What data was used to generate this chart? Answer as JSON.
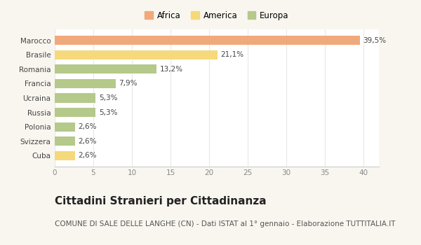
{
  "categories": [
    "Cuba",
    "Svizzera",
    "Polonia",
    "Russia",
    "Ucraina",
    "Francia",
    "Romania",
    "Brasile",
    "Marocco"
  ],
  "values": [
    2.6,
    2.6,
    2.6,
    5.3,
    5.3,
    7.9,
    13.2,
    21.1,
    39.5
  ],
  "labels": [
    "2,6%",
    "2,6%",
    "2,6%",
    "5,3%",
    "5,3%",
    "7,9%",
    "13,2%",
    "21,1%",
    "39,5%"
  ],
  "colors": [
    "#f5d97a",
    "#b5c98a",
    "#b5c98a",
    "#b5c98a",
    "#b5c98a",
    "#b5c98a",
    "#b5c98a",
    "#f5d97a",
    "#f0a97a"
  ],
  "legend_items": [
    {
      "label": "Africa",
      "color": "#f0a97a"
    },
    {
      "label": "America",
      "color": "#f5d97a"
    },
    {
      "label": "Europa",
      "color": "#b5c98a"
    }
  ],
  "xlim": [
    0,
    42
  ],
  "xticks": [
    0,
    5,
    10,
    15,
    20,
    25,
    30,
    35,
    40
  ],
  "title": "Cittadini Stranieri per Cittadinanza",
  "subtitle": "COMUNE DI SALE DELLE LANGHE (CN) - Dati ISTAT al 1° gennaio - Elaborazione TUTTITALIA.IT",
  "fig_background": "#f9f6f0",
  "plot_background": "#ffffff",
  "bar_height": 0.65,
  "title_fontsize": 11,
  "subtitle_fontsize": 7.5,
  "label_fontsize": 7.5,
  "tick_fontsize": 7.5,
  "legend_fontsize": 8.5
}
